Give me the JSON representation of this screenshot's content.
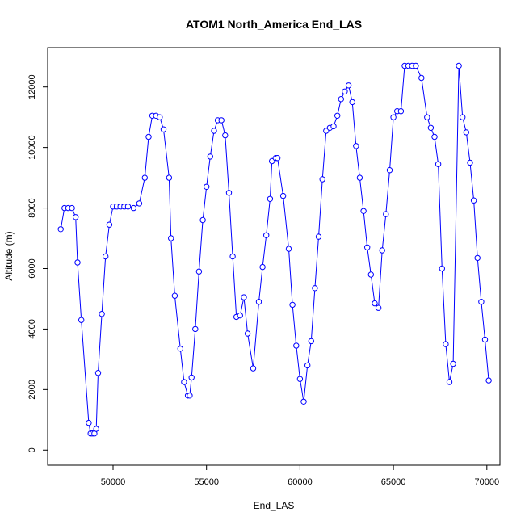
{
  "chart_data": {
    "type": "line",
    "title": "ATOM1 North_America End_LAS",
    "xlabel": "End_LAS",
    "ylabel": "Altitude (m)",
    "xlim": [
      46500,
      70700
    ],
    "ylim": [
      -500,
      13300
    ],
    "xticks": [
      50000,
      55000,
      60000,
      65000,
      70000
    ],
    "yticks": [
      0,
      2000,
      4000,
      6000,
      8000,
      10000,
      12000
    ],
    "grid": false,
    "legend": "none",
    "series_color": "#0000ff",
    "point_style": "open-circle",
    "line_style": "solid",
    "series": [
      {
        "x": [
          47200,
          47400,
          47600,
          47800,
          48000,
          48100,
          48300,
          48700,
          48800,
          48900,
          49000,
          49100,
          49200,
          49400,
          49600,
          49800,
          50000,
          50200,
          50400,
          50600,
          50800,
          51100,
          51400,
          51700,
          51900,
          52100,
          52300,
          52500,
          52700,
          53000,
          53100,
          53300,
          53600,
          53800,
          54000,
          54100,
          54200,
          54400,
          54600,
          54800,
          55000,
          55200,
          55400,
          55600,
          55800,
          56000,
          56200,
          56400,
          56600,
          56800,
          57000,
          57200,
          57500,
          57800,
          58000,
          58200,
          58400,
          58500,
          58700,
          58800,
          59100,
          59400,
          59600,
          59800,
          60000,
          60200,
          60400,
          60600,
          60800,
          61000,
          61200,
          61400,
          61600,
          61800,
          62000,
          62200,
          62400,
          62600,
          62800,
          63000,
          63200,
          63400,
          63600,
          63800,
          64000,
          64200,
          64400,
          64600,
          64800,
          65000,
          65200,
          65400,
          65600,
          65800,
          66000,
          66200,
          66500,
          66800,
          67000,
          67200,
          67400,
          67600,
          67800,
          68000,
          68200,
          68500,
          68700,
          68900,
          69100,
          69300,
          69500,
          69700,
          69900,
          70100
        ],
        "y": [
          7300,
          8000,
          8000,
          8000,
          7700,
          6200,
          4300,
          900,
          550,
          550,
          550,
          700,
          2550,
          4500,
          6400,
          7450,
          8050,
          8050,
          8050,
          8050,
          8050,
          8000,
          8150,
          9000,
          10350,
          11050,
          11050,
          11000,
          10600,
          9000,
          7000,
          5100,
          3350,
          2250,
          1800,
          1800,
          2400,
          4000,
          5900,
          7600,
          8700,
          9700,
          10550,
          10900,
          10900,
          10400,
          8500,
          6400,
          4400,
          4450,
          5050,
          3850,
          2700,
          4900,
          6050,
          7100,
          8300,
          9550,
          9650,
          9650,
          8400,
          6650,
          4800,
          3450,
          2350,
          1600,
          2800,
          3600,
          5350,
          7050,
          8950,
          10550,
          10650,
          10700,
          11050,
          11600,
          11850,
          12050,
          11500,
          10050,
          9000,
          7900,
          6700,
          5800,
          4850,
          4700,
          6600,
          7800,
          9250,
          11000,
          11200,
          11200,
          12700,
          12700,
          12700,
          12700,
          12300,
          11000,
          10650,
          10350,
          9450,
          6000,
          3500,
          2250,
          2850,
          12700,
          11000,
          10500,
          9500,
          8250,
          6350,
          4900,
          3650,
          2300
        ]
      }
    ]
  }
}
